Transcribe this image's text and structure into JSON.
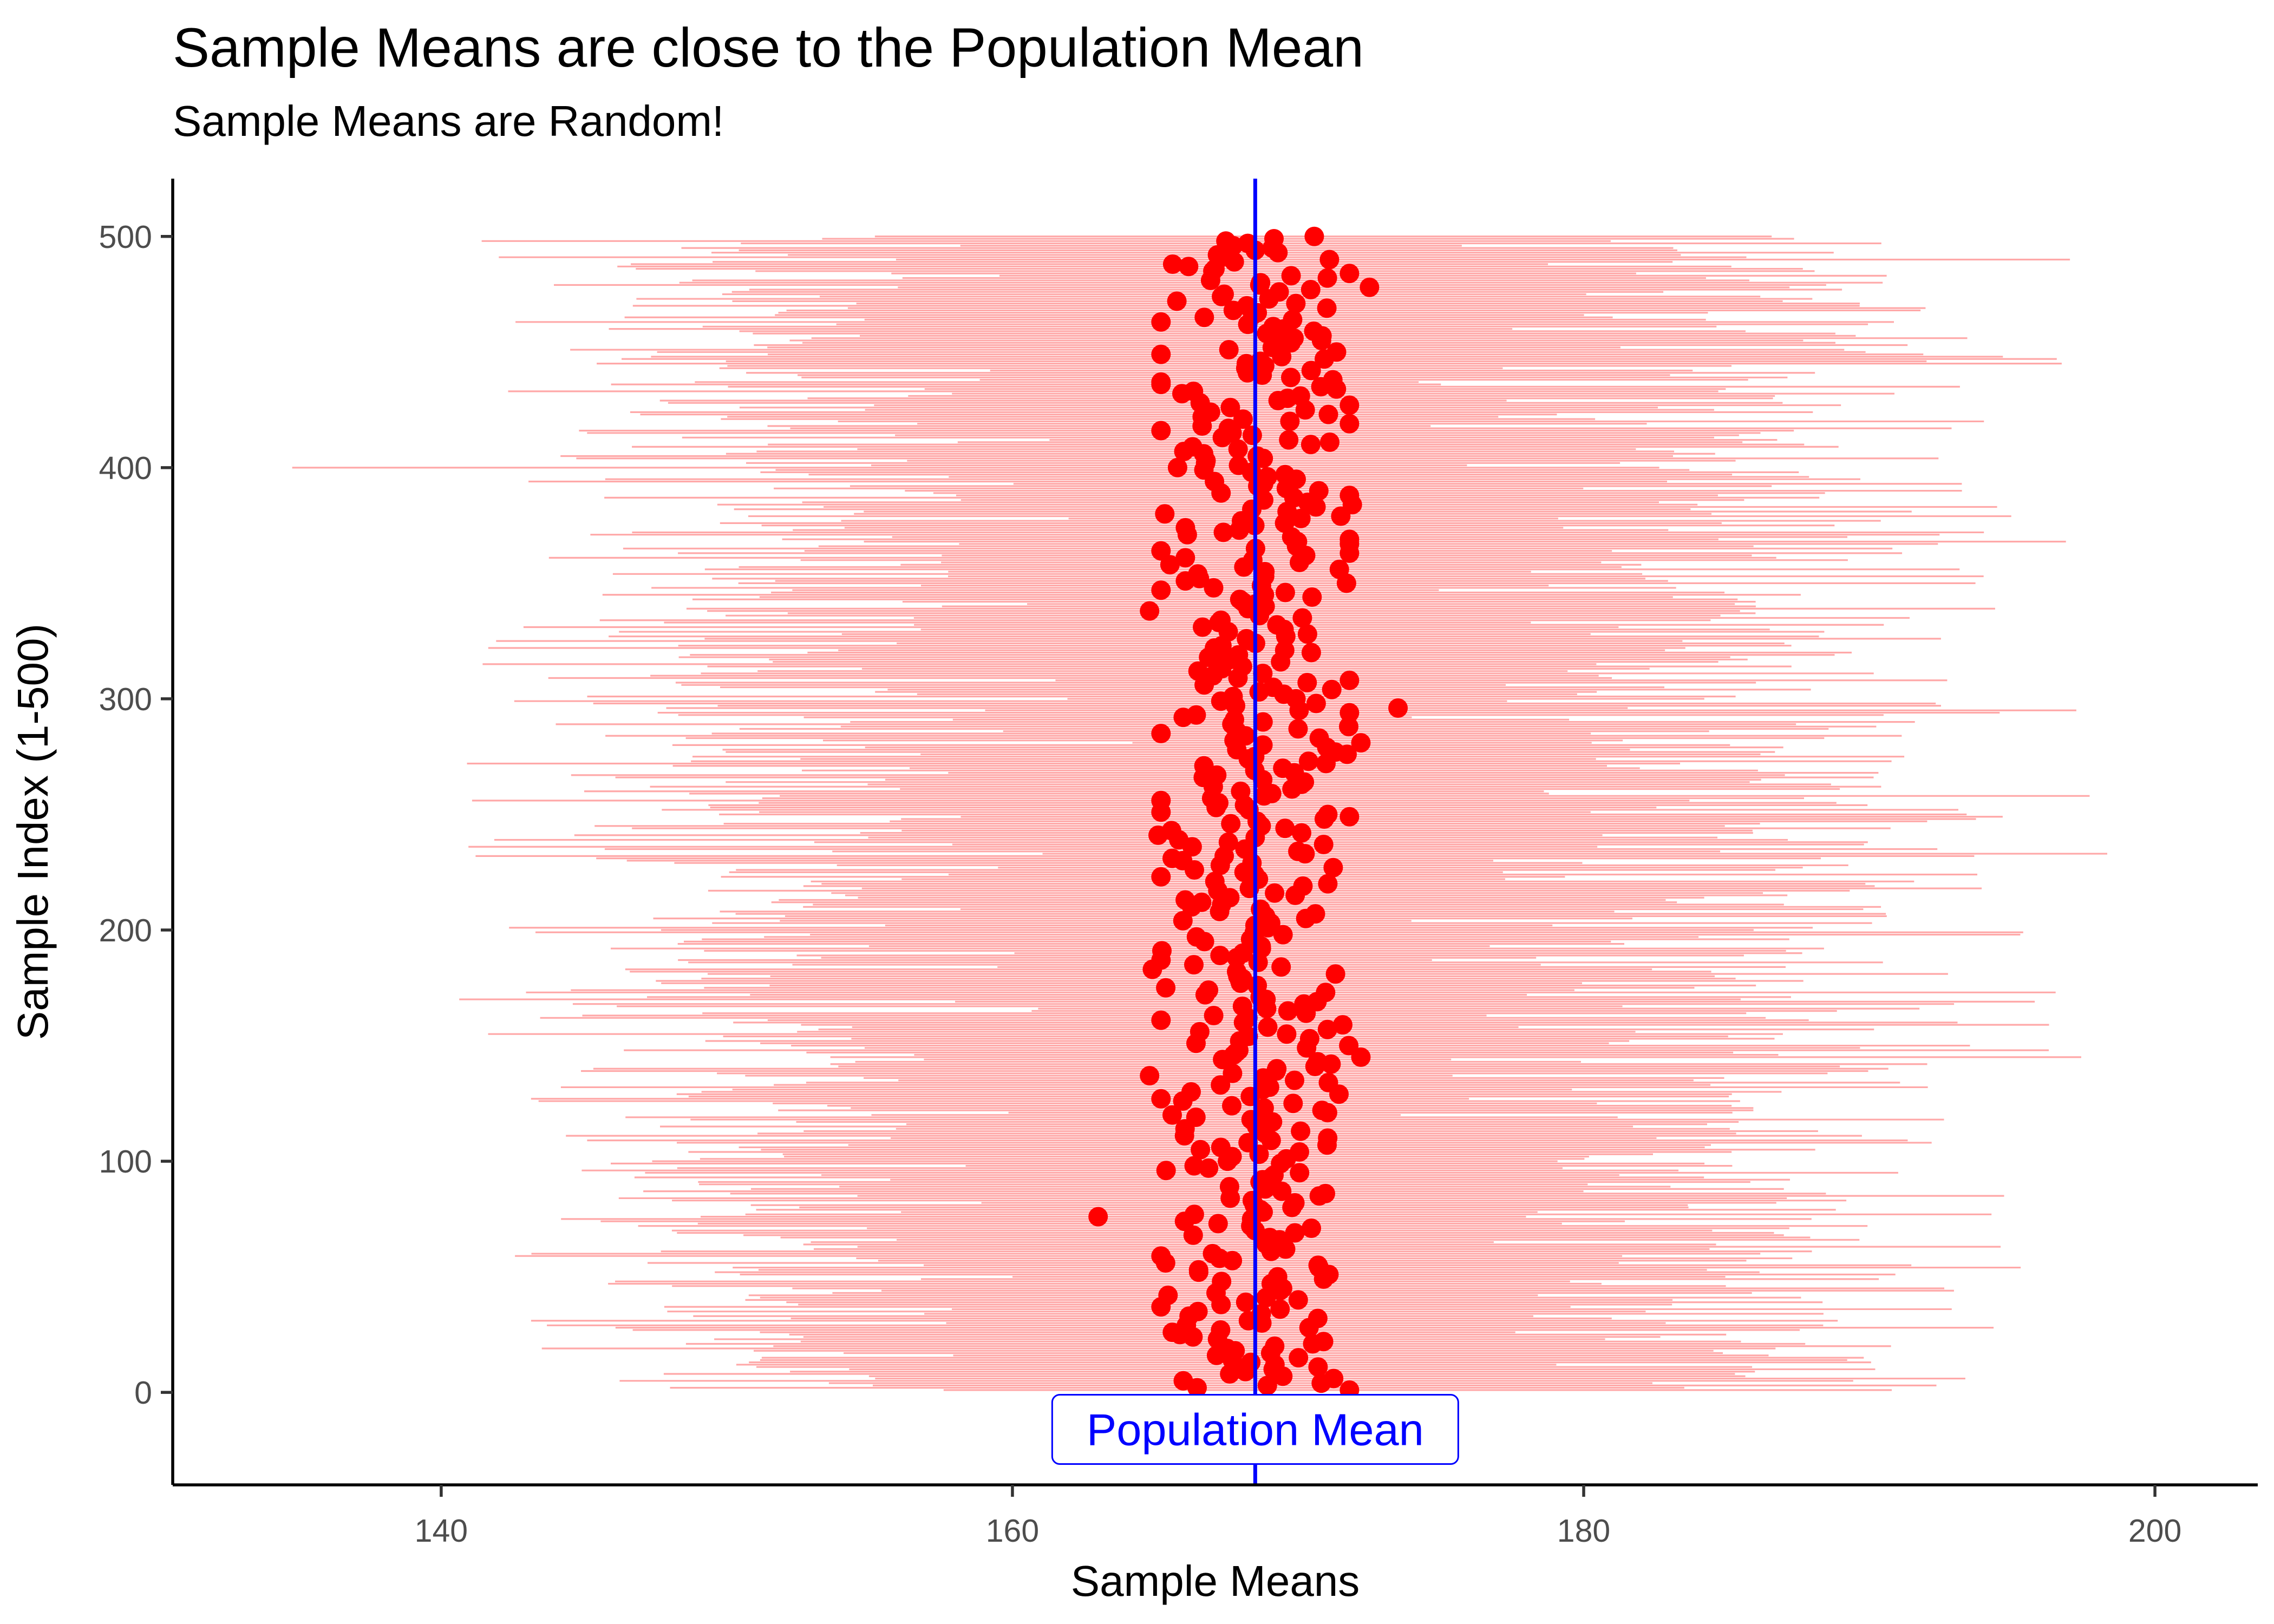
{
  "chart_data": {
    "type": "scatter",
    "title": "Sample Means are close to the Population Mean",
    "subtitle": "Sample Means are Random!",
    "xlabel": "Sample Means",
    "ylabel": "Sample Index (1-500)",
    "xlim": [
      130.6,
      203.6
    ],
    "ylim": [
      -40,
      525
    ],
    "x_ticks": [
      140,
      160,
      180,
      200
    ],
    "y_ticks": [
      0,
      100,
      200,
      300,
      400,
      500
    ],
    "x_tick_labels": [
      "140",
      "160",
      "180",
      "200"
    ],
    "y_tick_labels": [
      "0",
      "100",
      "200",
      "300",
      "400",
      "500"
    ],
    "population_mean": 168.5,
    "population_mean_label": "Population Mean",
    "n_samples": 500,
    "sample_mean_center": 168.5,
    "sample_mean_spread": 1.8,
    "range_half_width_typical": 17.5,
    "range_half_width_spread": 4.5,
    "outlier_points": [
      {
        "index": 76,
        "mean": 163.0
      },
      {
        "index": 296,
        "mean": 173.5
      },
      {
        "index": 338,
        "mean": 164.8
      },
      {
        "index": 183,
        "mean": 164.9
      },
      {
        "index": 137,
        "mean": 164.8
      },
      {
        "index": 241,
        "mean": 165.1
      },
      {
        "index": 478,
        "mean": 172.5
      },
      {
        "index": 281,
        "mean": 172.2
      },
      {
        "index": 145,
        "mean": 172.2
      },
      {
        "index": 384,
        "mean": 171.9
      }
    ],
    "colors": {
      "range_line": "#ffa8a8",
      "point": "#ff0000",
      "mean_line": "#0000ff",
      "axis": "#000000",
      "tick_label": "#4d4d4d"
    }
  }
}
